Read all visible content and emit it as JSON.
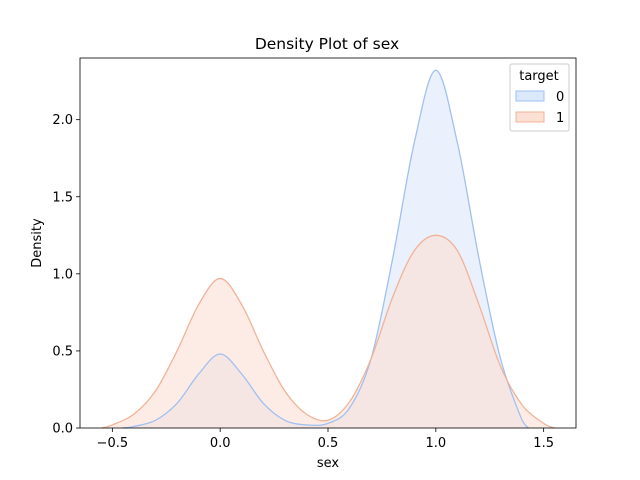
{
  "chart_data": {
    "type": "area",
    "title": "Density Plot of sex",
    "xlabel": "sex",
    "ylabel": "Density",
    "xlim": [
      -0.65,
      1.65
    ],
    "ylim": [
      0,
      2.4
    ],
    "xticks": [
      -0.5,
      0.0,
      0.5,
      1.0,
      1.5
    ],
    "xtick_labels": [
      "−0.5",
      "0.0",
      "0.5",
      "1.0",
      "1.5"
    ],
    "yticks": [
      0.0,
      0.5,
      1.0,
      1.5,
      2.0
    ],
    "ytick_labels": [
      "0.0",
      "0.5",
      "1.0",
      "1.5",
      "2.0"
    ],
    "grid": false,
    "legend": {
      "title": "target",
      "placement": "top-right"
    },
    "series": [
      {
        "name": "0",
        "line_color": "#a1c0f0",
        "fill_color": "#dce8fb",
        "x": [
          -0.45,
          -0.4,
          -0.3,
          -0.2,
          -0.1,
          0.0,
          0.1,
          0.2,
          0.3,
          0.4,
          0.5,
          0.6,
          0.7,
          0.8,
          0.9,
          1.0,
          1.1,
          1.2,
          1.3,
          1.4,
          1.43
        ],
        "y": [
          0.0,
          0.01,
          0.05,
          0.16,
          0.35,
          0.48,
          0.35,
          0.16,
          0.05,
          0.02,
          0.03,
          0.13,
          0.45,
          1.1,
          1.85,
          2.32,
          1.85,
          1.1,
          0.45,
          0.05,
          0.0
        ]
      },
      {
        "name": "1",
        "line_color": "#f0b398",
        "fill_color": "#fbe0d3",
        "x": [
          -0.55,
          -0.5,
          -0.4,
          -0.3,
          -0.2,
          -0.1,
          0.0,
          0.1,
          0.2,
          0.3,
          0.4,
          0.5,
          0.6,
          0.7,
          0.8,
          0.9,
          1.0,
          1.1,
          1.2,
          1.3,
          1.4,
          1.5,
          1.55
        ],
        "y": [
          0.0,
          0.02,
          0.09,
          0.24,
          0.5,
          0.8,
          0.97,
          0.8,
          0.5,
          0.24,
          0.09,
          0.05,
          0.17,
          0.45,
          0.85,
          1.15,
          1.25,
          1.15,
          0.8,
          0.4,
          0.15,
          0.03,
          0.0
        ]
      }
    ]
  }
}
